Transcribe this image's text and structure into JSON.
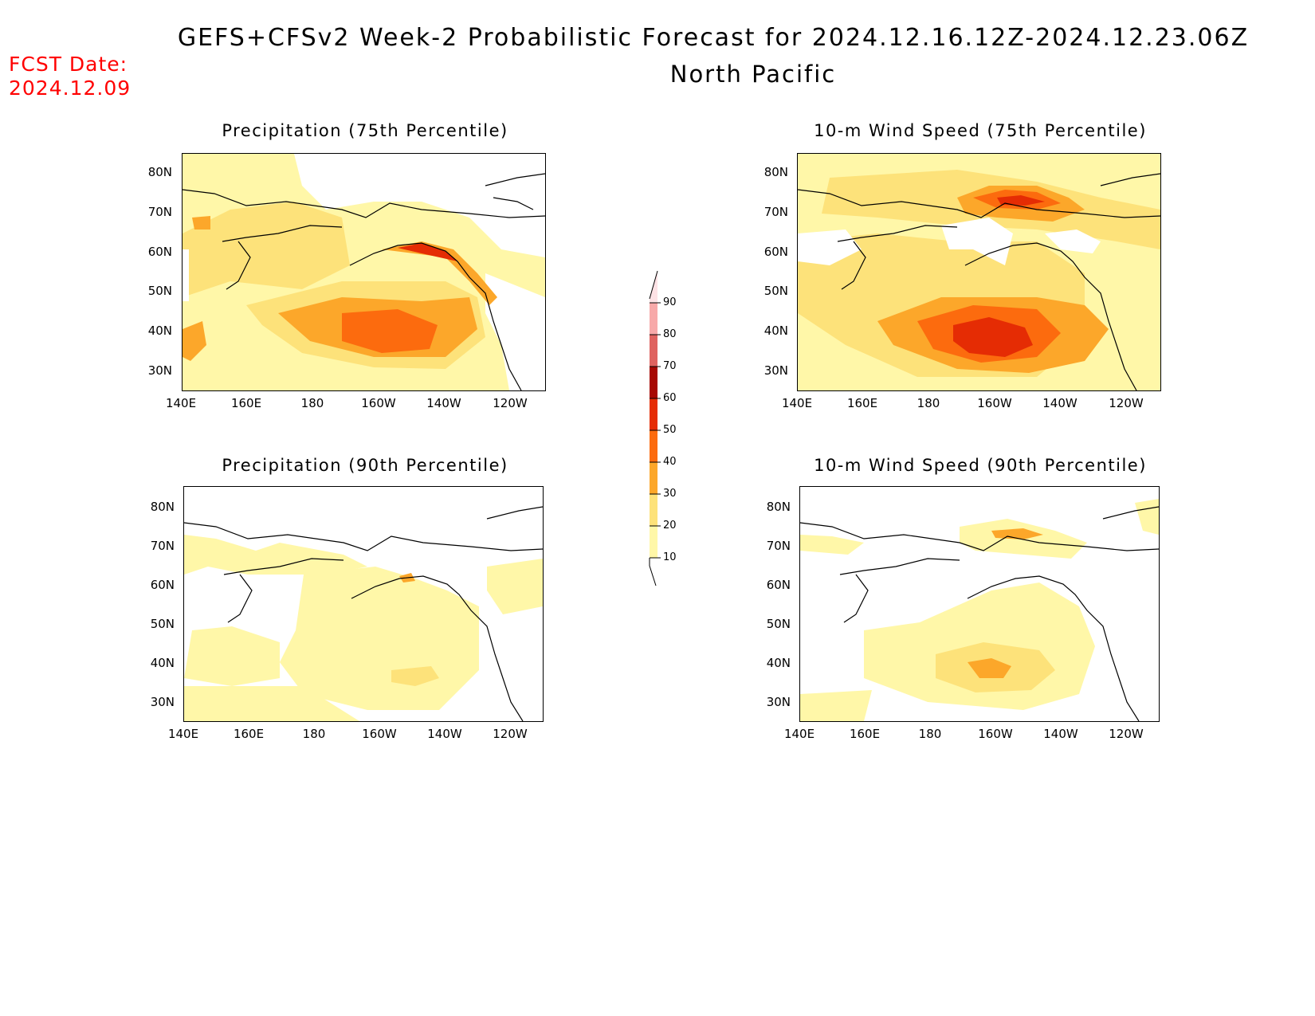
{
  "header": {
    "title_line1": "GEFS+CFSv2 Week-2 Probabilistic Forecast for 2024.12.16.12Z-2024.12.23.06Z",
    "title_line2": "North Pacific",
    "fcst_label": "FCST Date:",
    "fcst_date": "2024.12.09"
  },
  "axes": {
    "lat_labels": [
      "80N",
      "70N",
      "60N",
      "50N",
      "40N",
      "30N"
    ],
    "lon_labels": [
      "140E",
      "160E",
      "180",
      "160W",
      "140W",
      "120W"
    ]
  },
  "panels": [
    {
      "title": "Precipitation (75th Percentile)"
    },
    {
      "title": "10-m Wind Speed (75th Percentile)"
    },
    {
      "title": "Precipitation (90th Percentile)"
    },
    {
      "title": "10-m Wind Speed (90th Percentile)"
    }
  ],
  "colorbar": {
    "labels": [
      "90",
      "80",
      "70",
      "60",
      "50",
      "40",
      "30",
      "20",
      "10"
    ],
    "colors": {
      "10": "#fff7a8",
      "20": "#fde27a",
      "30": "#fca72a",
      "40": "#fc6b0e",
      "50": "#e52c04",
      "60": "#a70803",
      "70": "#df6360",
      "80": "#f7a9a9",
      "90": "#fde2e5"
    }
  }
}
